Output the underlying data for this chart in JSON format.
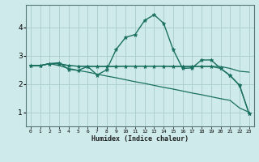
{
  "xlabel": "Humidex (Indice chaleur)",
  "bg_color": "#ceeaea",
  "grid_color": "#aacccc",
  "line_color": "#1a7060",
  "xlim": [
    -0.5,
    23.5
  ],
  "ylim": [
    0.5,
    4.8
  ],
  "yticks": [
    1,
    2,
    3,
    4
  ],
  "xticks": [
    0,
    1,
    2,
    3,
    4,
    5,
    6,
    7,
    8,
    9,
    10,
    11,
    12,
    13,
    14,
    15,
    16,
    17,
    18,
    19,
    20,
    21,
    22,
    23
  ],
  "series": [
    {
      "x": [
        0,
        1,
        2,
        3,
        4,
        5,
        6,
        7,
        8,
        9,
        10,
        11,
        12,
        13,
        14,
        15,
        16,
        17,
        18,
        19,
        20,
        21,
        22,
        23
      ],
      "y": [
        2.65,
        2.65,
        2.72,
        2.75,
        2.52,
        2.48,
        2.62,
        2.32,
        2.5,
        3.22,
        3.65,
        3.75,
        4.25,
        4.45,
        4.15,
        3.22,
        2.55,
        2.57,
        2.85,
        2.85,
        2.55,
        2.3,
        1.95,
        0.95
      ],
      "marker": "*",
      "markersize": 3.5,
      "linewidth": 1.0
    },
    {
      "x": [
        0,
        1,
        2,
        3,
        4,
        5,
        6,
        7,
        8,
        9,
        10,
        11,
        12,
        13,
        14,
        15,
        16,
        17,
        18,
        19,
        20,
        21,
        22,
        23
      ],
      "y": [
        2.65,
        2.65,
        2.72,
        2.72,
        2.65,
        2.63,
        2.63,
        2.62,
        2.62,
        2.62,
        2.63,
        2.63,
        2.63,
        2.63,
        2.63,
        2.62,
        2.62,
        2.62,
        2.62,
        2.62,
        2.62,
        2.55,
        2.45,
        2.42
      ],
      "marker": null,
      "markersize": 0,
      "linewidth": 0.9
    },
    {
      "x": [
        0,
        1,
        2,
        3,
        4,
        5,
        6,
        7,
        8,
        9,
        10,
        11,
        12,
        13,
        14,
        15,
        16,
        17,
        18,
        19,
        20,
        21,
        22,
        23
      ],
      "y": [
        2.65,
        2.65,
        2.72,
        2.65,
        2.55,
        2.48,
        2.42,
        2.35,
        2.28,
        2.22,
        2.15,
        2.08,
        2.02,
        1.95,
        1.88,
        1.82,
        1.75,
        1.68,
        1.62,
        1.55,
        1.48,
        1.42,
        1.15,
        1.0
      ],
      "marker": null,
      "markersize": 0,
      "linewidth": 0.9
    },
    {
      "x": [
        0,
        1,
        2,
        3,
        4,
        5,
        6,
        7,
        8,
        9,
        10,
        11,
        12,
        13,
        14,
        15,
        16,
        17,
        18,
        19,
        20,
        21,
        22,
        23
      ],
      "y": [
        2.65,
        2.65,
        2.72,
        2.72,
        2.65,
        2.63,
        2.62,
        2.62,
        2.62,
        2.62,
        2.63,
        2.63,
        2.63,
        2.63,
        2.63,
        2.62,
        2.62,
        2.62,
        2.62,
        2.62,
        2.55,
        2.3,
        1.95,
        0.95
      ],
      "marker": "*",
      "markersize": 3.5,
      "linewidth": 0.9
    }
  ]
}
